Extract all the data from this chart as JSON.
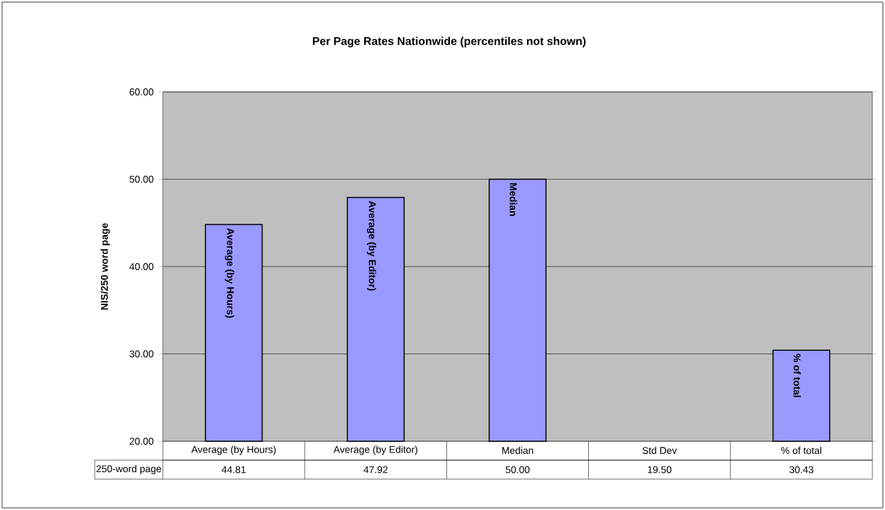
{
  "chart_data": {
    "type": "bar",
    "title": "Per Page Rates Nationwide (percentiles not shown)",
    "ylabel": "NIS/250 word page",
    "categories": [
      "Average (by Hours)",
      "Average (by Editor)",
      "Median",
      "Std Dev",
      "% of total"
    ],
    "series": [
      {
        "name": "250-word page",
        "color": "#9999ff",
        "values": [
          44.81,
          47.92,
          50.0,
          null,
          30.43
        ],
        "value_labels": [
          "44.81",
          "47.92",
          "50.00",
          "19.50",
          "30.43"
        ]
      }
    ],
    "ylim": [
      20,
      60
    ],
    "yticks": [
      {
        "value": 20,
        "label": "20.00"
      },
      {
        "value": 30,
        "label": "30.00"
      },
      {
        "value": 40,
        "label": "40.00"
      },
      {
        "value": 50,
        "label": "50.00"
      },
      {
        "value": 60,
        "label": "60.00"
      }
    ],
    "grid": "y",
    "annotations": [
      {
        "text": "Average (by Hours)",
        "x": "Average (by Hours)",
        "y": 44.81
      },
      {
        "text": "Average (by Editor)",
        "x": "Average (by Editor)",
        "y": 47.92
      },
      {
        "text": "Median",
        "x": "Median",
        "y": 50.0
      },
      {
        "text": "% of total",
        "x": "% of total",
        "y": 30.43
      }
    ]
  }
}
